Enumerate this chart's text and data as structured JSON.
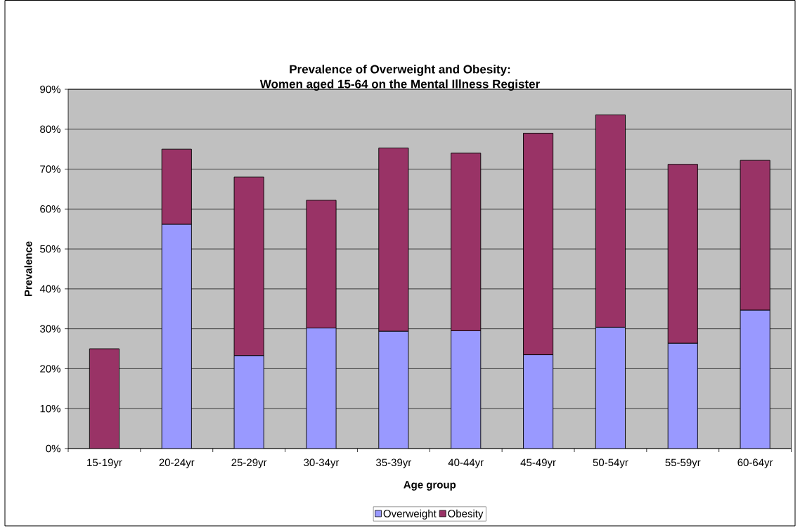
{
  "chart_data": {
    "type": "bar",
    "title": "Prevalence of Overweight and Obesity:",
    "subtitle": "Women aged 15-64 on the Mental Illness Register",
    "xlabel": "Age group",
    "ylabel": "Prevalence",
    "categories": [
      "15-19yr",
      "20-24yr",
      "25-29yr",
      "30-34yr",
      "35-39yr",
      "40-44yr",
      "45-49yr",
      "50-54yr",
      "55-59yr",
      "60-64yr"
    ],
    "series": [
      {
        "name": "Overweight",
        "color": "#9999ff",
        "values": [
          null,
          56.2,
          23.3,
          30.2,
          29.4,
          29.5,
          23.5,
          30.4,
          26.4,
          34.7
        ]
      },
      {
        "name": "Obesity",
        "color": "#993366",
        "values": [
          25.0,
          18.8,
          44.7,
          32.0,
          45.9,
          44.5,
          55.5,
          53.2,
          44.8,
          37.5
        ]
      }
    ],
    "stacked": true,
    "ylim": [
      0,
      90
    ],
    "yticks": [
      {
        "value": 0,
        "label": "0%"
      },
      {
        "value": 10,
        "label": "10%"
      },
      {
        "value": 20,
        "label": "20%"
      },
      {
        "value": 30,
        "label": "30%"
      },
      {
        "value": 40,
        "label": "40%"
      },
      {
        "value": 50,
        "label": "50%"
      },
      {
        "value": 60,
        "label": "60%"
      },
      {
        "value": 70,
        "label": "70%"
      },
      {
        "value": 80,
        "label": "80%"
      },
      {
        "value": 90,
        "label": "90%"
      }
    ],
    "grid": "y",
    "legend": "bottom"
  }
}
